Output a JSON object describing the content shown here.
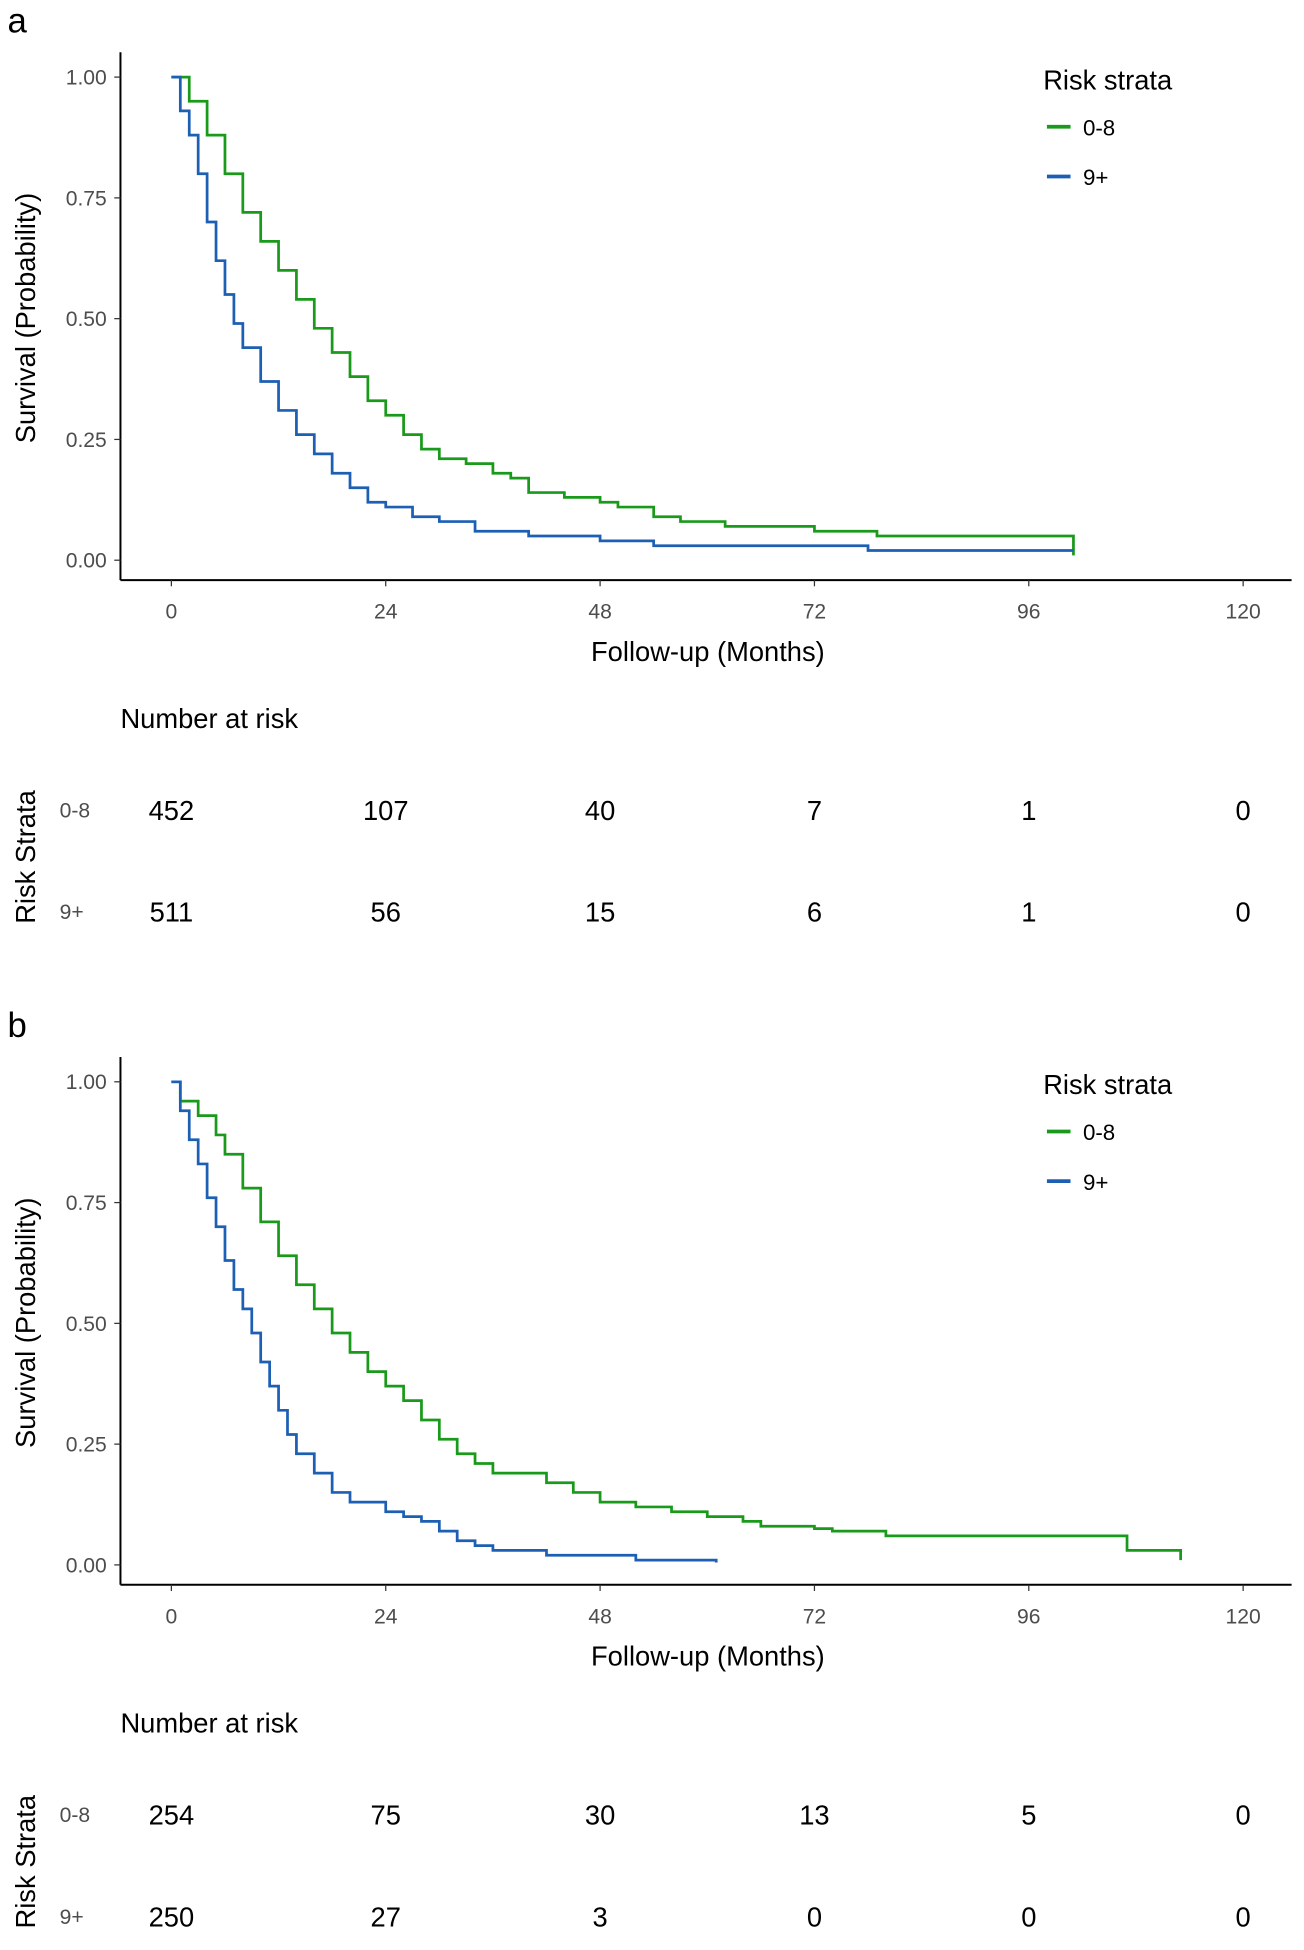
{
  "colors": {
    "group_0_8": "#1a9a1a",
    "group_9_plus": "#1d5fb3"
  },
  "chart_data": [
    {
      "type": "line",
      "panel_label": "a",
      "xlabel": "Follow-up (Months)",
      "ylabel": "Survival (Probability)",
      "xlim": [
        0,
        120
      ],
      "ylim": [
        0,
        1
      ],
      "xticks": [
        "0",
        "24",
        "48",
        "72",
        "96",
        "120"
      ],
      "yticks": [
        "0.00",
        "0.25",
        "0.50",
        "0.75",
        "1.00"
      ],
      "legend": {
        "title": "Risk strata",
        "position": "top-right"
      },
      "series": [
        {
          "name": "0-8",
          "points": [
            [
              0,
              1
            ],
            [
              2,
              0.95
            ],
            [
              4,
              0.88
            ],
            [
              6,
              0.8
            ],
            [
              8,
              0.72
            ],
            [
              10,
              0.66
            ],
            [
              12,
              0.6
            ],
            [
              14,
              0.54
            ],
            [
              16,
              0.48
            ],
            [
              18,
              0.43
            ],
            [
              20,
              0.38
            ],
            [
              22,
              0.33
            ],
            [
              24,
              0.3
            ],
            [
              26,
              0.26
            ],
            [
              28,
              0.23
            ],
            [
              30,
              0.21
            ],
            [
              33,
              0.2
            ],
            [
              36,
              0.18
            ],
            [
              38,
              0.17
            ],
            [
              40,
              0.14
            ],
            [
              44,
              0.13
            ],
            [
              48,
              0.12
            ],
            [
              50,
              0.11
            ],
            [
              54,
              0.09
            ],
            [
              57,
              0.08
            ],
            [
              62,
              0.07
            ],
            [
              72,
              0.06
            ],
            [
              79,
              0.05
            ],
            [
              101,
              0.05
            ],
            [
              101,
              0.01
            ]
          ]
        },
        {
          "name": "9+",
          "points": [
            [
              0,
              1
            ],
            [
              1,
              0.93
            ],
            [
              2,
              0.88
            ],
            [
              3,
              0.8
            ],
            [
              4,
              0.7
            ],
            [
              5,
              0.62
            ],
            [
              6,
              0.55
            ],
            [
              7,
              0.49
            ],
            [
              8,
              0.44
            ],
            [
              10,
              0.37
            ],
            [
              12,
              0.31
            ],
            [
              14,
              0.26
            ],
            [
              16,
              0.22
            ],
            [
              18,
              0.18
            ],
            [
              20,
              0.15
            ],
            [
              22,
              0.12
            ],
            [
              24,
              0.11
            ],
            [
              27,
              0.09
            ],
            [
              30,
              0.08
            ],
            [
              34,
              0.06
            ],
            [
              40,
              0.05
            ],
            [
              48,
              0.04
            ],
            [
              54,
              0.03
            ],
            [
              77,
              0.03
            ],
            [
              78,
              0.02
            ],
            [
              101,
              0.02
            ]
          ]
        }
      ],
      "risk_table": {
        "title": "Number at risk",
        "ylabel": "Risk Strata",
        "rows": [
          {
            "label": "0-8",
            "values": [
              "452",
              "107",
              "40",
              "7",
              "1",
              "0"
            ]
          },
          {
            "label": "9+",
            "values": [
              "511",
              "56",
              "15",
              "6",
              "1",
              "0"
            ]
          }
        ]
      }
    },
    {
      "type": "line",
      "panel_label": "b",
      "xlabel": "Follow-up (Months)",
      "ylabel": "Survival (Probability)",
      "xlim": [
        0,
        120
      ],
      "ylim": [
        0,
        1
      ],
      "xticks": [
        "0",
        "24",
        "48",
        "72",
        "96",
        "120"
      ],
      "yticks": [
        "0.00",
        "0.25",
        "0.50",
        "0.75",
        "1.00"
      ],
      "legend": {
        "title": "Risk strata",
        "position": "top-right"
      },
      "series": [
        {
          "name": "0-8",
          "points": [
            [
              0,
              1
            ],
            [
              1,
              0.96
            ],
            [
              3,
              0.93
            ],
            [
              5,
              0.89
            ],
            [
              6,
              0.85
            ],
            [
              8,
              0.78
            ],
            [
              10,
              0.71
            ],
            [
              12,
              0.64
            ],
            [
              14,
              0.58
            ],
            [
              16,
              0.53
            ],
            [
              18,
              0.48
            ],
            [
              20,
              0.44
            ],
            [
              22,
              0.4
            ],
            [
              24,
              0.37
            ],
            [
              26,
              0.34
            ],
            [
              28,
              0.3
            ],
            [
              30,
              0.26
            ],
            [
              32,
              0.23
            ],
            [
              34,
              0.21
            ],
            [
              36,
              0.19
            ],
            [
              40,
              0.19
            ],
            [
              42,
              0.17
            ],
            [
              45,
              0.15
            ],
            [
              48,
              0.13
            ],
            [
              52,
              0.12
            ],
            [
              56,
              0.11
            ],
            [
              60,
              0.1
            ],
            [
              64,
              0.09
            ],
            [
              66,
              0.08
            ],
            [
              72,
              0.075
            ],
            [
              74,
              0.07
            ],
            [
              80,
              0.06
            ],
            [
              106,
              0.06
            ],
            [
              107,
              0.03
            ],
            [
              113,
              0.03
            ],
            [
              113,
              0.01
            ]
          ]
        },
        {
          "name": "9+",
          "points": [
            [
              0,
              1
            ],
            [
              1,
              0.94
            ],
            [
              2,
              0.88
            ],
            [
              3,
              0.83
            ],
            [
              4,
              0.76
            ],
            [
              5,
              0.7
            ],
            [
              6,
              0.63
            ],
            [
              7,
              0.57
            ],
            [
              8,
              0.53
            ],
            [
              9,
              0.48
            ],
            [
              10,
              0.42
            ],
            [
              11,
              0.37
            ],
            [
              12,
              0.32
            ],
            [
              13,
              0.27
            ],
            [
              14,
              0.23
            ],
            [
              16,
              0.19
            ],
            [
              18,
              0.15
            ],
            [
              20,
              0.13
            ],
            [
              24,
              0.11
            ],
            [
              26,
              0.1
            ],
            [
              28,
              0.09
            ],
            [
              30,
              0.07
            ],
            [
              32,
              0.05
            ],
            [
              34,
              0.04
            ],
            [
              36,
              0.03
            ],
            [
              42,
              0.02
            ],
            [
              52,
              0.01
            ],
            [
              61,
              0.005
            ]
          ]
        }
      ],
      "risk_table": {
        "title": "Number at risk",
        "ylabel": "Risk Strata",
        "rows": [
          {
            "label": "0-8",
            "values": [
              "254",
              "75",
              "30",
              "13",
              "5",
              "0"
            ]
          },
          {
            "label": "9+",
            "values": [
              "250",
              "27",
              "3",
              "0",
              "0",
              "0"
            ]
          }
        ]
      }
    }
  ]
}
